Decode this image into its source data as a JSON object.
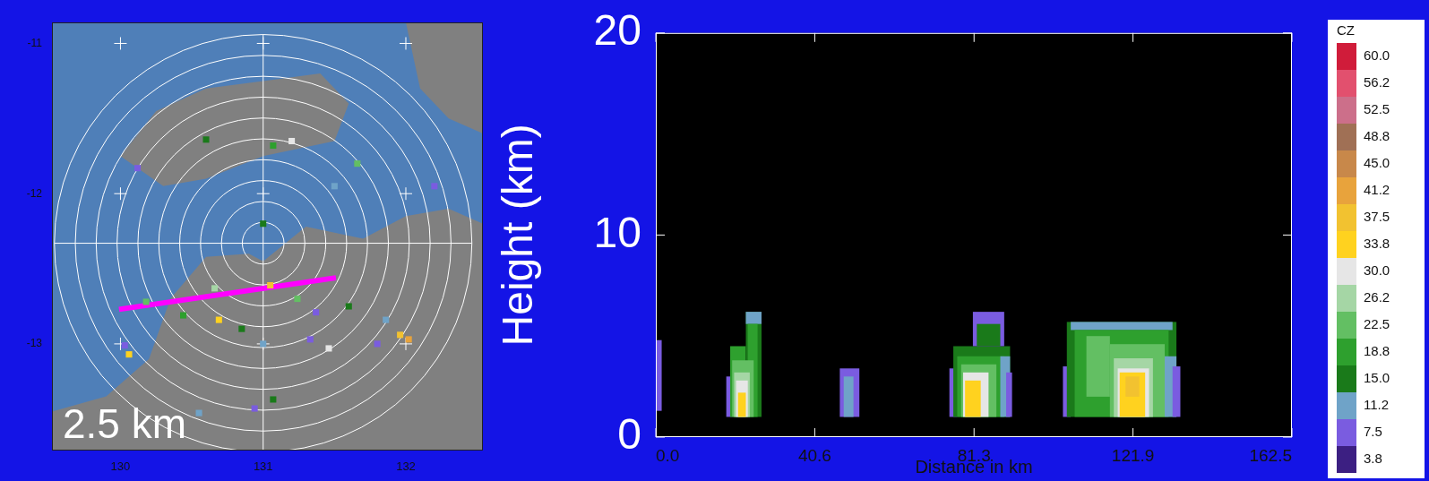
{
  "chart_data": [
    {
      "type": "map",
      "annotation": "2.5 km",
      "xlim": [
        129.52,
        132.54
      ],
      "xticks": [
        130,
        131,
        132
      ],
      "ylim": [
        -13.71,
        -10.86
      ],
      "yticks": [
        -13,
        -12,
        -11
      ],
      "echoes": {
        "lon": [
          131.2,
          131.07,
          130.6,
          130.12,
          131.66,
          131.5,
          132.2,
          131.0,
          130.18,
          130.44,
          130.69,
          130.66,
          131.05,
          131.24,
          131.37,
          131.6,
          131.86,
          130.85,
          131.0,
          131.46,
          131.33,
          131.96,
          132.02,
          131.8,
          130.06,
          130.03,
          131.07,
          130.94,
          130.55
        ],
        "lat": [
          -11.65,
          -11.68,
          -11.64,
          -11.83,
          -11.8,
          -11.95,
          -11.95,
          -12.2,
          -12.72,
          -12.81,
          -12.84,
          -12.63,
          -12.61,
          -12.7,
          -12.79,
          -12.75,
          -12.84,
          -12.9,
          -13.0,
          -13.03,
          -12.97,
          -12.94,
          -12.97,
          -13.0,
          -13.07,
          -13.01,
          -13.37,
          -13.43,
          -13.46
        ],
        "dbz": [
          30.0,
          18.8,
          15.0,
          7.5,
          22.5,
          11.2,
          7.5,
          15.0,
          22.5,
          18.8,
          33.8,
          26.2,
          37.5,
          22.5,
          7.5,
          15.0,
          11.2,
          15.0,
          11.2,
          30.0,
          7.5,
          37.5,
          41.2,
          7.5,
          33.8,
          7.5,
          15.0,
          7.5,
          11.2
        ]
      },
      "section": {
        "lon": [
          129.99,
          131.51
        ],
        "lat": [
          -12.77,
          -12.56
        ],
        "color": "#ff00ff"
      }
    },
    {
      "type": "heatmap",
      "x_label": "Distance in km",
      "y_label": "Height (km)",
      "xlim": [
        0,
        162.5
      ],
      "xticks": [
        {
          "value": 0,
          "label": "0.0"
        },
        40.6,
        81.3,
        121.9,
        162.5
      ],
      "ylim": [
        0,
        20
      ],
      "yticks": [
        0,
        10,
        20
      ],
      "cells": [
        [
          0,
          1.5,
          1.3,
          4.8,
          7.5
        ],
        [
          18,
          19.5,
          1,
          3,
          7.5
        ],
        [
          19,
          23,
          1,
          4.5,
          18.8
        ],
        [
          23,
          27,
          1,
          6.2,
          15.0
        ],
        [
          23,
          27,
          5.6,
          6.2,
          11.2
        ],
        [
          23.5,
          26,
          1,
          5.6,
          18.8
        ],
        [
          19.5,
          25,
          1,
          3.8,
          22.5
        ],
        [
          20,
          24,
          1,
          3.2,
          26.2
        ],
        [
          20.5,
          23.5,
          1,
          2.8,
          30.0
        ],
        [
          21,
          23,
          1,
          2.2,
          33.8
        ],
        [
          47,
          52,
          1,
          3.4,
          7.5
        ],
        [
          48,
          50.5,
          1,
          3.0,
          11.2
        ],
        [
          75,
          77,
          1,
          3.4,
          7.5
        ],
        [
          76,
          90.5,
          1,
          4.5,
          15.0
        ],
        [
          81,
          89,
          4.5,
          6.2,
          7.5
        ],
        [
          82,
          88,
          4.5,
          5.6,
          15.0
        ],
        [
          77,
          89,
          1,
          4.0,
          18.8
        ],
        [
          78,
          87,
          1,
          3.6,
          22.5
        ],
        [
          78.5,
          85,
          1,
          3.2,
          30.0
        ],
        [
          79,
          83,
          1,
          2.8,
          33.8
        ],
        [
          88,
          90.5,
          1,
          4,
          11.2
        ],
        [
          89.5,
          91,
          1,
          3.2,
          7.5
        ],
        [
          104,
          106,
          1,
          3.5,
          7.5
        ],
        [
          105,
          133,
          1,
          5.7,
          15.0
        ],
        [
          106,
          132,
          5.3,
          5.7,
          11.2
        ],
        [
          107,
          131,
          1,
          5.3,
          18.8
        ],
        [
          110,
          116,
          2,
          5,
          22.5
        ],
        [
          116,
          130,
          1,
          4.6,
          22.5
        ],
        [
          117,
          127,
          1,
          3.9,
          26.2
        ],
        [
          118,
          126,
          1,
          3.4,
          30.0
        ],
        [
          118.5,
          125,
          1,
          3.2,
          33.8
        ],
        [
          120,
          123.5,
          2.0,
          3.0,
          37.5
        ],
        [
          130,
          133,
          1,
          4,
          11.2
        ],
        [
          132,
          134,
          1,
          3.5,
          7.5
        ]
      ],
      "colorbar": {
        "title": "CZ",
        "ticks": [
          3.8,
          7.5,
          11.2,
          {
            "value": 15,
            "label": "15.0"
          },
          18.8,
          22.5,
          26.2,
          {
            "value": 30,
            "label": "30.0"
          },
          33.8,
          37.5,
          41.2,
          {
            "value": 45,
            "label": "45.0"
          },
          48.8,
          52.5,
          56.2,
          {
            "value": 60,
            "label": "60.0"
          }
        ],
        "colors": [
          "#3c1f82",
          "#7a5ce0",
          "#6fa3c8",
          "#1a7a1a",
          "#2ea02e",
          "#63bf63",
          "#a5d6a5",
          "#e6e6e6",
          "#ffd21f",
          "#f2c230",
          "#e8a33c",
          "#c8884a",
          "#a07055",
          "#cc6f8a",
          "#e2506e",
          "#d01c3a"
        ]
      }
    }
  ]
}
